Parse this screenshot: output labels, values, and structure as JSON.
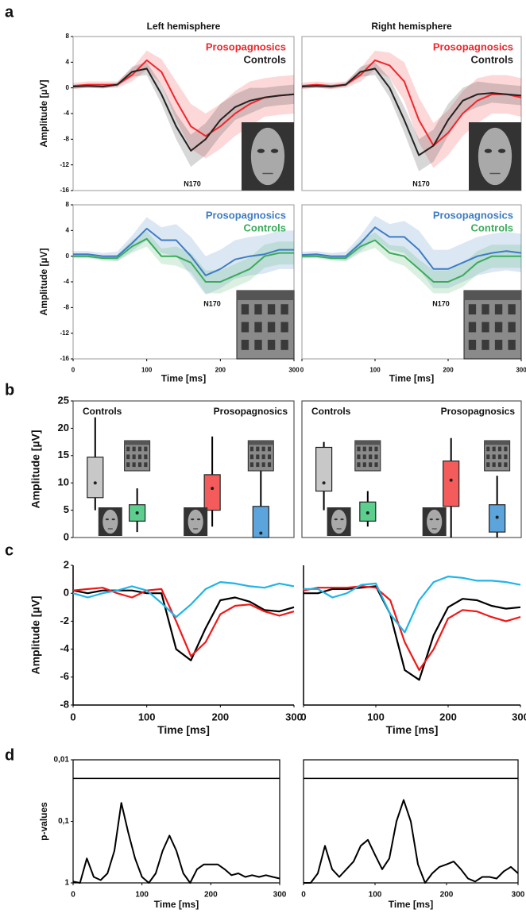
{
  "panel_labels": [
    "a",
    "b",
    "c",
    "d"
  ],
  "chart_data": [
    {
      "type": "line",
      "title": "Left hemisphere",
      "ylabel": "Amplitude [µV]",
      "annotation": "N170",
      "inset": "face",
      "x": [
        0,
        20,
        40,
        60,
        80,
        100,
        120,
        140,
        160,
        180,
        200,
        220,
        240,
        260,
        280,
        300
      ],
      "xlim": [
        0,
        300
      ],
      "ylim": [
        -16,
        8
      ],
      "yticks": [
        8,
        4,
        0,
        -4,
        -8,
        -12,
        -16
      ],
      "series": [
        {
          "name": "Prosopagnosics",
          "color": "#f0262b",
          "values": [
            0.3,
            0.5,
            0.5,
            0.5,
            2,
            4.3,
            2.5,
            -2,
            -6,
            -7.5,
            -6,
            -4,
            -2.5,
            -1.5,
            -1.2,
            -1
          ],
          "sd": [
            0.5,
            0.5,
            0.5,
            0.5,
            1,
            1.5,
            2,
            3,
            3.5,
            3.5,
            3.5,
            3.5,
            3.5,
            3,
            3,
            3
          ]
        },
        {
          "name": "Controls",
          "color": "#222222",
          "values": [
            0.2,
            0.3,
            0.2,
            0.5,
            2.5,
            3,
            -1,
            -6,
            -9.8,
            -8,
            -5,
            -3,
            -2,
            -1.5,
            -1.2,
            -1
          ],
          "sd": [
            0.3,
            0.3,
            0.3,
            0.3,
            0.8,
            1,
            1.5,
            2,
            2.5,
            2.5,
            2.5,
            2,
            2,
            1.5,
            1.5,
            1.5
          ]
        }
      ]
    },
    {
      "type": "line",
      "title": "Right hemisphere",
      "annotation": "N170",
      "inset": "face",
      "x": [
        0,
        20,
        40,
        60,
        80,
        100,
        120,
        140,
        160,
        180,
        200,
        220,
        240,
        260,
        280,
        300
      ],
      "xlim": [
        0,
        300
      ],
      "ylim": [
        -16,
        8
      ],
      "series": [
        {
          "name": "Prosopagnosics",
          "color": "#f0262b",
          "values": [
            0.3,
            0.5,
            0.3,
            0.5,
            2,
            4.3,
            3.5,
            1,
            -5,
            -9,
            -7,
            -4,
            -2,
            -1,
            -1,
            -1.5
          ],
          "sd": [
            0.5,
            0.5,
            0.5,
            0.5,
            1,
            1.5,
            2,
            3,
            3.5,
            3.5,
            3.5,
            3.5,
            3.5,
            3,
            3,
            3
          ]
        },
        {
          "name": "Controls",
          "color": "#222222",
          "values": [
            0.2,
            0.3,
            0.2,
            0.5,
            2.5,
            3,
            0,
            -5,
            -10.5,
            -9,
            -5,
            -2,
            -1,
            -0.8,
            -1,
            -1.2
          ],
          "sd": [
            0.3,
            0.3,
            0.3,
            0.3,
            0.8,
            1,
            1.5,
            2,
            2.5,
            2.5,
            2.5,
            2,
            2,
            1.5,
            1.5,
            1.5
          ]
        }
      ]
    },
    {
      "type": "line",
      "ylabel": "Amplitude [µV]",
      "xlabel": "Time [ms]",
      "annotation": "N170",
      "inset": "house",
      "x": [
        0,
        20,
        40,
        60,
        80,
        100,
        120,
        140,
        160,
        180,
        200,
        220,
        240,
        260,
        280,
        300
      ],
      "xlim": [
        0,
        300
      ],
      "xticks": [
        0,
        100,
        200,
        300
      ],
      "ylim": [
        -16,
        8
      ],
      "yticks": [
        8,
        4,
        0,
        -4,
        -8,
        -12,
        -16
      ],
      "series": [
        {
          "name": "Prosopagnosics",
          "color": "#3d7cc4",
          "values": [
            0.3,
            0.3,
            0,
            0,
            2,
            4.3,
            2.5,
            2.5,
            0,
            -3,
            -2,
            -0.5,
            0,
            0.3,
            1,
            1
          ],
          "sd": [
            0.5,
            0.5,
            0.5,
            0.7,
            1.2,
            1.8,
            2,
            2.5,
            3,
            3,
            3,
            3,
            3,
            3,
            3,
            3
          ]
        },
        {
          "name": "Controls",
          "color": "#3aab5a",
          "values": [
            0,
            0,
            -0.3,
            -0.3,
            1.5,
            2.7,
            0,
            0,
            -1,
            -4,
            -4,
            -3,
            -2,
            0,
            0.5,
            0.5
          ],
          "sd": [
            0.3,
            0.3,
            0.4,
            0.5,
            1,
            1.2,
            1.2,
            1.5,
            1.5,
            1.8,
            1.8,
            1.8,
            1.8,
            1.8,
            1.8,
            1.8
          ]
        }
      ]
    },
    {
      "type": "line",
      "xlabel": "Time [ms]",
      "annotation": "N170",
      "inset": "house",
      "x": [
        0,
        20,
        40,
        60,
        80,
        100,
        120,
        140,
        160,
        180,
        200,
        220,
        240,
        260,
        280,
        300
      ],
      "xlim": [
        0,
        300
      ],
      "xticks": [
        0,
        100,
        200,
        300
      ],
      "ylim": [
        -16,
        8
      ],
      "series": [
        {
          "name": "Prosopagnosics",
          "color": "#3d7cc4",
          "values": [
            0.2,
            0.3,
            0,
            0,
            2,
            4.5,
            3,
            3,
            1,
            -2,
            -2,
            -1,
            0,
            0.5,
            0.8,
            0.5
          ],
          "sd": [
            0.5,
            0.5,
            0.5,
            0.7,
            1.2,
            1.8,
            2,
            2.5,
            3,
            3,
            3,
            3,
            3,
            3,
            3,
            3
          ]
        },
        {
          "name": "Controls",
          "color": "#3aab5a",
          "values": [
            0,
            0,
            -0.3,
            -0.3,
            1.5,
            2.5,
            0.5,
            0,
            -2,
            -4,
            -4,
            -3,
            -1,
            0,
            0,
            0
          ],
          "sd": [
            0.3,
            0.3,
            0.4,
            0.5,
            1,
            1.2,
            1.2,
            1.5,
            1.5,
            1.8,
            1.8,
            1.8,
            1.8,
            1.8,
            1.8,
            1.8
          ]
        }
      ]
    },
    {
      "type": "box",
      "ylabel": "Amplitude [µV]",
      "group_labels": [
        "Controls",
        "Prosopagnosics"
      ],
      "ylim": [
        0,
        25
      ],
      "yticks": [
        0,
        5,
        10,
        15,
        20,
        25
      ],
      "boxes": [
        {
          "color": "#c8c8c8",
          "icon": "face",
          "stats": [
            5,
            7.3,
            10,
            14.7,
            22
          ]
        },
        {
          "color": "#5ccf8f",
          "icon": "house",
          "stats": [
            1,
            3,
            4.5,
            6,
            9
          ]
        },
        {
          "color": "#f45c5c",
          "icon": "face",
          "stats": [
            2,
            5,
            9,
            11.5,
            18.5
          ]
        },
        {
          "color": "#5ba4dc",
          "icon": "house",
          "stats": [
            0,
            0,
            0.8,
            5.7,
            12.7
          ]
        }
      ]
    },
    {
      "type": "box",
      "group_labels": [
        "Controls",
        "Prosopagnosics"
      ],
      "ylim": [
        0,
        25
      ],
      "boxes": [
        {
          "color": "#c8c8c8",
          "icon": "face",
          "stats": [
            5,
            8.5,
            10,
            16.5,
            17.5
          ]
        },
        {
          "color": "#5ccf8f",
          "icon": "house",
          "stats": [
            2,
            3,
            4.5,
            6.5,
            8.5
          ]
        },
        {
          "color": "#f45c5c",
          "icon": "face",
          "stats": [
            0,
            5.7,
            10.5,
            14,
            18.2
          ]
        },
        {
          "color": "#5ba4dc",
          "icon": "house",
          "stats": [
            0,
            1,
            3.7,
            6,
            11.3
          ]
        }
      ]
    },
    {
      "type": "line",
      "ylabel": "Amplitude [µV]",
      "xlabel": "Time [ms]",
      "x": [
        0,
        20,
        40,
        60,
        80,
        100,
        120,
        140,
        160,
        180,
        200,
        220,
        240,
        260,
        280,
        300
      ],
      "xlim": [
        0,
        300
      ],
      "xticks": [
        0,
        100,
        200,
        300
      ],
      "ylim": [
        -8,
        2
      ],
      "yticks": [
        2,
        0,
        -2,
        -4,
        -6,
        -8
      ],
      "series": [
        {
          "color": "#000000",
          "values": [
            0.2,
            0,
            0.2,
            0.2,
            0.2,
            0,
            0,
            -4,
            -4.8,
            -2.5,
            -0.5,
            -0.3,
            -0.6,
            -1.2,
            -1.3,
            -1
          ]
        },
        {
          "color": "#f01818",
          "values": [
            0.2,
            0.3,
            0.4,
            0,
            -0.3,
            0.2,
            0.3,
            -2,
            -4.5,
            -3.5,
            -1.5,
            -0.9,
            -0.8,
            -1.3,
            -1.6,
            -1.3
          ]
        },
        {
          "color": "#1fb4e8",
          "values": [
            0,
            -0.3,
            0,
            0.2,
            0.5,
            0.2,
            -0.7,
            -1.7,
            -0.8,
            0.3,
            0.8,
            0.7,
            0.5,
            0.4,
            0.7,
            0.5
          ]
        }
      ]
    },
    {
      "type": "line",
      "xlabel": "Time [ms]",
      "x": [
        0,
        20,
        40,
        60,
        80,
        100,
        120,
        140,
        160,
        180,
        200,
        220,
        240,
        260,
        280,
        300
      ],
      "xlim": [
        0,
        300
      ],
      "xticks": [
        0,
        100,
        200,
        300
      ],
      "ylim": [
        -8,
        2
      ],
      "series": [
        {
          "color": "#000000",
          "values": [
            0,
            0,
            0.3,
            0.3,
            0.4,
            0.5,
            -1.5,
            -5.5,
            -6.2,
            -3,
            -1,
            -0.4,
            -0.5,
            -0.9,
            -1.1,
            -1
          ]
        },
        {
          "color": "#f01818",
          "values": [
            0.2,
            0.4,
            0.4,
            0.4,
            0.5,
            0.4,
            -0.5,
            -3.5,
            -5.5,
            -4,
            -1.8,
            -1.2,
            -1.3,
            -1.7,
            -2,
            -1.7
          ]
        },
        {
          "color": "#1fb4e8",
          "values": [
            0.3,
            0.3,
            -0.3,
            0,
            0.6,
            0.7,
            -1.5,
            -2.8,
            -0.5,
            0.8,
            1.2,
            1.1,
            0.9,
            0.9,
            0.8,
            0.6
          ]
        }
      ]
    },
    {
      "type": "line",
      "ylabel": "p-values",
      "xlabel": "Time [ms]",
      "log_y": true,
      "threshold": 0.02,
      "x": [
        0,
        10,
        20,
        30,
        40,
        50,
        60,
        70,
        80,
        90,
        100,
        110,
        120,
        130,
        140,
        150,
        160,
        170,
        180,
        190,
        200,
        210,
        220,
        230,
        240,
        250,
        260,
        270,
        280,
        290,
        300
      ],
      "xlim": [
        0,
        300
      ],
      "xticks": [
        0,
        100,
        200,
        300
      ],
      "ylim": [
        1,
        0.01
      ],
      "yticks": [
        {
          "value": 0.01,
          "label": "0,01"
        },
        {
          "value": 0.1,
          "label": "0,1"
        },
        1
      ],
      "series": [
        {
          "color": "#000000",
          "values": [
            0.95,
            1,
            0.4,
            0.8,
            0.9,
            0.7,
            0.3,
            0.05,
            0.15,
            0.4,
            0.8,
            1,
            0.7,
            0.3,
            0.17,
            0.3,
            0.7,
            1,
            0.6,
            0.5,
            0.5,
            0.5,
            0.6,
            0.75,
            0.7,
            0.8,
            0.75,
            0.8,
            0.75,
            0.8,
            0.85
          ]
        }
      ]
    },
    {
      "type": "line",
      "xlabel": "Time [ms]",
      "log_y": true,
      "threshold": 0.02,
      "x": [
        0,
        10,
        20,
        30,
        40,
        50,
        60,
        70,
        80,
        90,
        100,
        110,
        120,
        130,
        140,
        150,
        160,
        170,
        180,
        190,
        200,
        210,
        220,
        230,
        240,
        250,
        260,
        270,
        280,
        290,
        300
      ],
      "xlim": [
        0,
        300
      ],
      "xticks": [
        0,
        100,
        200,
        300
      ],
      "ylim": [
        1,
        0.01
      ],
      "series": [
        {
          "color": "#000000",
          "values": [
            1,
            1,
            0.7,
            0.25,
            0.6,
            0.8,
            0.6,
            0.45,
            0.25,
            0.2,
            0.35,
            0.6,
            0.4,
            0.1,
            0.045,
            0.1,
            0.5,
            1,
            0.7,
            0.55,
            0.5,
            0.45,
            0.6,
            0.85,
            0.95,
            0.8,
            0.8,
            0.85,
            0.65,
            0.55,
            0.7
          ]
        }
      ]
    }
  ]
}
